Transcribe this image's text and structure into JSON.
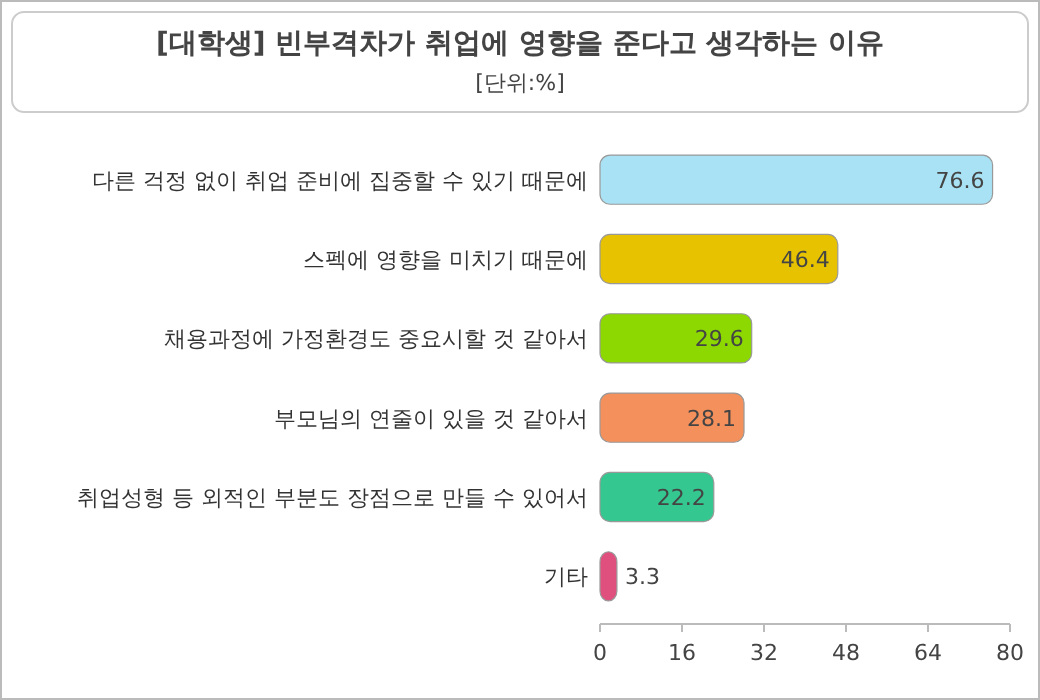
{
  "chart_data": {
    "type": "bar",
    "orientation": "horizontal",
    "title": "[대학생] 빈부격차가 취업에 영향을 준다고 생각하는 이유",
    "subtitle": "[단위:%]",
    "categories": [
      "다른 걱정 없이 취업 준비에 집중할 수 있기 때문에",
      "스펙에 영향을 미치기 때문에",
      "채용과정에 가정환경도 중요시할 것 같아서",
      "부모님의 연줄이 있을 것 같아서",
      "취업성형 등 외적인 부분도 장점으로 만들 수 있어서",
      "기타"
    ],
    "values": [
      76.6,
      46.4,
      29.6,
      28.1,
      22.2,
      3.3
    ],
    "colors": [
      "#a8e2f4",
      "#e6c200",
      "#8cd800",
      "#f4905c",
      "#34c890",
      "#e0507e"
    ],
    "xlim": [
      0,
      80
    ],
    "xticks": [
      0,
      16,
      32,
      48,
      64,
      80
    ],
    "data_labels": true
  }
}
